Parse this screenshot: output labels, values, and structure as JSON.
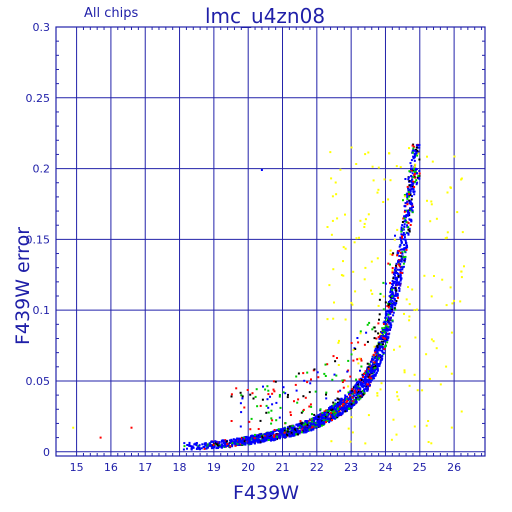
{
  "chart_data": {
    "type": "scatter",
    "title": "lmc_u4zn08",
    "subtitle": "All chips",
    "xlabel": "F439W",
    "ylabel": "F439W error",
    "xlim": [
      14.4,
      26.9
    ],
    "ylim": [
      -0.003,
      0.3
    ],
    "x_ticks": [
      "15",
      "16",
      "17",
      "18",
      "19",
      "20",
      "21",
      "22",
      "23",
      "24",
      "25",
      "26"
    ],
    "y_ticks": [
      "0",
      "0.05",
      "0.1",
      "0.15",
      "0.2",
      "0.25",
      "0.3"
    ],
    "grid": true,
    "colors": {
      "frame": "#2222aa",
      "grid": "#2222aa",
      "text": "#1f1fa8",
      "series": [
        "#0000ff",
        "#ff0000",
        "#00cc00",
        "#000000",
        "#ffff00"
      ]
    },
    "series": [
      {
        "color": "#0000ff",
        "description_note": "",
        "points": [
          [
            18.5,
            0.004
          ],
          [
            19.0,
            0.005
          ],
          [
            19.5,
            0.006
          ],
          [
            20.0,
            0.008
          ],
          [
            20.5,
            0.01
          ],
          [
            21.0,
            0.013
          ],
          [
            21.5,
            0.016
          ],
          [
            22.0,
            0.021
          ],
          [
            22.5,
            0.028
          ],
          [
            23.0,
            0.037
          ],
          [
            23.5,
            0.052
          ],
          [
            23.8,
            0.068
          ],
          [
            24.0,
            0.085
          ],
          [
            24.2,
            0.105
          ],
          [
            24.4,
            0.13
          ],
          [
            24.6,
            0.16
          ],
          [
            24.8,
            0.195
          ],
          [
            24.9,
            0.215
          ]
        ]
      }
    ]
  }
}
